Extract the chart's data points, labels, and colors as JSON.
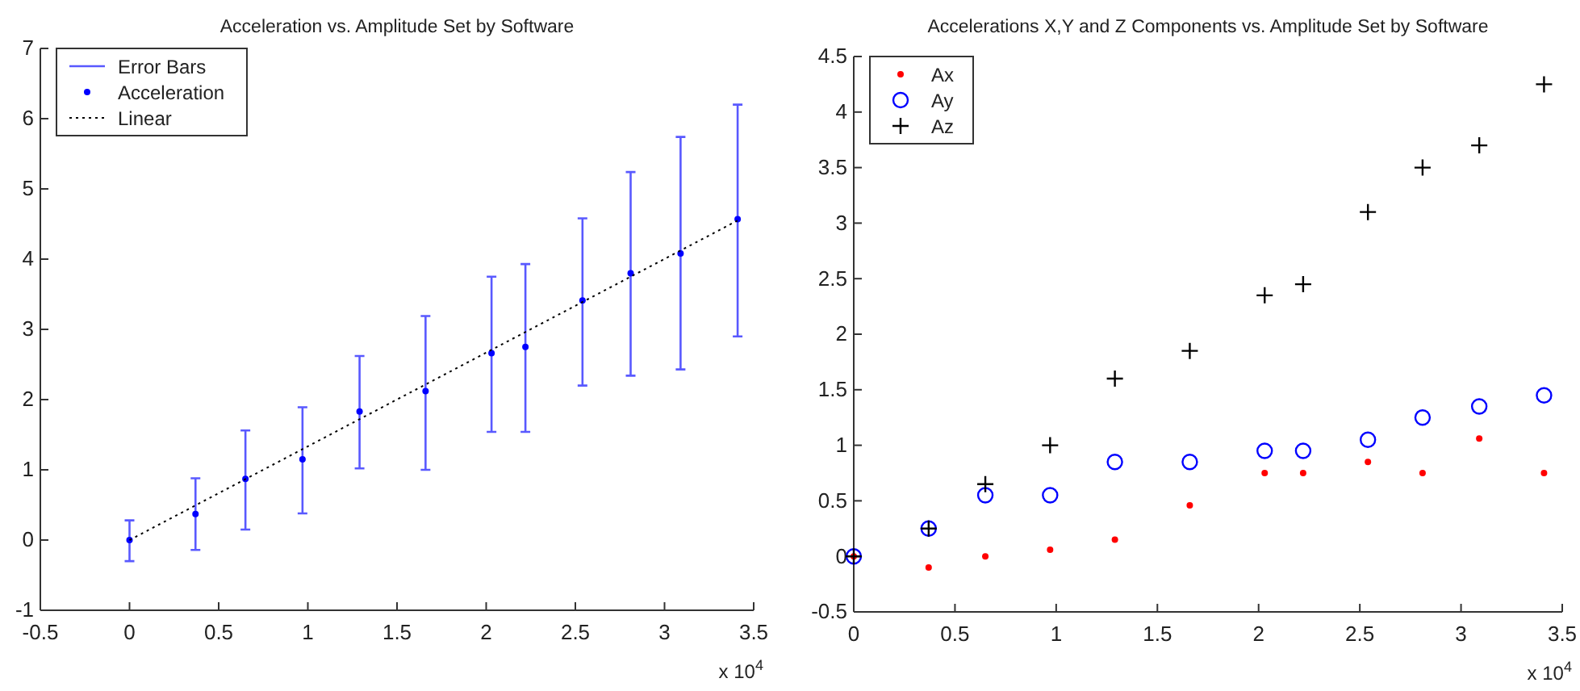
{
  "chart_data": [
    {
      "type": "scatter",
      "title": "Acceleration vs. Amplitude Set by Software",
      "xlim": [
        -0.5,
        3.5
      ],
      "xticks": [
        -0.5,
        0,
        0.5,
        1,
        1.5,
        2,
        2.5,
        3,
        3.5
      ],
      "ylim": [
        -1,
        7
      ],
      "yticks": [
        -1,
        0,
        1,
        2,
        3,
        4,
        5,
        6,
        7
      ],
      "grid": false,
      "legend": "top left",
      "legend_title": "Error Bars",
      "annotations": [
        "x 10$^{4}$"
      ],
      "series": [
        {
          "name": "Acceleration",
          "type": "scatter",
          "marker": "circle",
          "color": "#0000ff",
          "x": [
            0,
            0.37,
            0.65,
            0.97,
            1.29,
            1.66,
            2.03,
            2.22,
            2.54,
            2.81,
            3.09,
            3.41
          ],
          "values": [
            0,
            0.37,
            0.87,
            1.15,
            1.83,
            2.12,
            2.66,
            2.75,
            3.41,
            3.8,
            4.08,
            4.57
          ],
          "errors": [
            [
              -0.3,
              0.28
            ],
            [
              -0.14,
              0.88
            ],
            [
              0.15,
              1.56
            ],
            [
              0.38,
              1.89
            ],
            [
              1.02,
              2.62
            ],
            [
              1.0,
              3.19
            ],
            [
              1.54,
              3.75
            ],
            [
              1.54,
              3.93
            ],
            [
              2.2,
              4.58
            ],
            [
              2.34,
              5.24
            ],
            [
              2.43,
              5.74
            ],
            [
              2.9,
              6.2
            ]
          ]
        },
        {
          "name": "Linear",
          "type": "line",
          "line_style": "dotted",
          "color": "#000000",
          "x": [
            0,
            3.41
          ],
          "values": [
            0,
            4.55
          ]
        }
      ]
    },
    {
      "type": "scatter",
      "title": "Accelerations X,Y and Z Components vs. Amplitude Set by Software",
      "xlim": [
        0,
        3.5
      ],
      "xticks": [
        0,
        0.5,
        1,
        1.5,
        2,
        2.5,
        3,
        3.5
      ],
      "ylim": [
        -0.5,
        4.5
      ],
      "yticks": [
        -0.5,
        0,
        0.5,
        1,
        1.5,
        2,
        2.5,
        3,
        3.5,
        4,
        4.5
      ],
      "grid": false,
      "legend": "top left",
      "annotations": [
        "x 10$^{4}$"
      ],
      "x": [
        0,
        0.37,
        0.65,
        0.97,
        1.29,
        1.66,
        2.03,
        2.22,
        2.54,
        2.81,
        3.09,
        3.41
      ],
      "series": [
        {
          "name": "Ax",
          "marker": "circle",
          "color": "#ff0000",
          "values": [
            0,
            -0.1,
            0.0,
            0.06,
            0.15,
            0.46,
            0.75,
            0.75,
            0.85,
            0.75,
            1.06,
            0.75
          ]
        },
        {
          "name": "Ay",
          "marker": "circle",
          "color": "#0000ff",
          "values": [
            0,
            0.25,
            0.55,
            0.55,
            0.85,
            0.85,
            0.95,
            0.95,
            1.05,
            1.25,
            1.35,
            1.45
          ]
        },
        {
          "name": "Az",
          "marker": "cross",
          "color": "#000000",
          "values": [
            0,
            0.25,
            0.65,
            1.0,
            1.6,
            1.85,
            2.35,
            2.45,
            3.1,
            3.5,
            3.7,
            4.25
          ]
        }
      ]
    }
  ]
}
